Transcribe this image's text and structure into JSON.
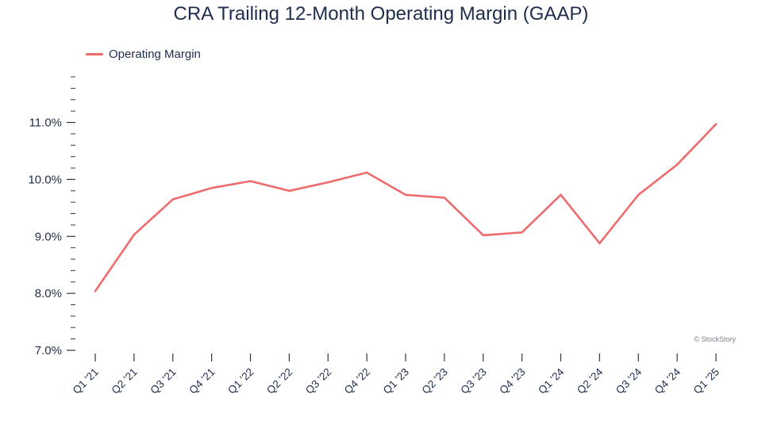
{
  "colors": {
    "series": "#ee6b6e",
    "axis": "#2b3547",
    "text": "#1f2d4d"
  },
  "watermark": "© StockStory",
  "chart_data": {
    "type": "line",
    "title": "CRA Trailing 12-Month Operating Margin (GAAP)",
    "xlabel": "",
    "ylabel": "",
    "legend_position": "top-left",
    "grid": false,
    "ylim": [
      7.0,
      11.8
    ],
    "yticks": [
      {
        "value": 7.0,
        "label": "7.0%"
      },
      {
        "value": 8.0,
        "label": "8.0%"
      },
      {
        "value": 9.0,
        "label": "9.0%"
      },
      {
        "value": 10.0,
        "label": "10.0%"
      },
      {
        "value": 11.0,
        "label": "11.0%"
      }
    ],
    "categories": [
      "Q1 '21",
      "Q2 '21",
      "Q3 '21",
      "Q4 '21",
      "Q1 '22",
      "Q2 '22",
      "Q3 '22",
      "Q4 '22",
      "Q1 '23",
      "Q2 '23",
      "Q3 '23",
      "Q4 '23",
      "Q1 '24",
      "Q2 '24",
      "Q3 '24",
      "Q4 '24",
      "Q1 '25"
    ],
    "series": [
      {
        "name": "Operating Margin",
        "values": [
          8.04,
          9.03,
          9.65,
          9.85,
          9.97,
          9.8,
          9.95,
          10.12,
          9.73,
          9.68,
          9.02,
          9.07,
          9.73,
          8.88,
          9.73,
          10.26,
          10.97
        ]
      }
    ]
  }
}
